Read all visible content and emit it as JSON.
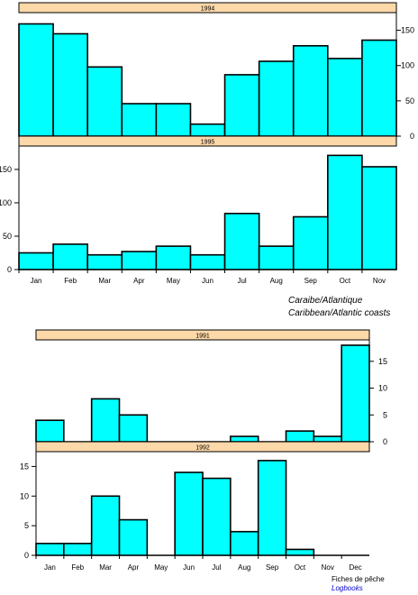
{
  "captions": {
    "region_fr": "Caraibe/Atlantique",
    "region_en": "Caribbean/Atlantic coasts",
    "source_fr": "Fiches de pêche",
    "source_en": "Logbooks"
  },
  "colors": {
    "bar": "#00ffff",
    "header": "#fdd8a8",
    "axis": "#000000",
    "source_en": "#0000cc"
  },
  "chart_data": [
    {
      "type": "bar",
      "title": "1994",
      "categories": [
        "Jan",
        "Feb",
        "Mar",
        "Apr",
        "May",
        "Jun",
        "Jul",
        "Aug",
        "Sep",
        "Oct",
        "Nov"
      ],
      "values": [
        159,
        145,
        98,
        46,
        46,
        17,
        87,
        106,
        128,
        110,
        136
      ],
      "ylim": [
        0,
        175
      ],
      "yticks": [
        0,
        50,
        100,
        150
      ],
      "ytick_side": "right",
      "xlabel": "",
      "ylabel": "",
      "grid": false
    },
    {
      "type": "bar",
      "title": "1995",
      "categories": [
        "Jan",
        "Feb",
        "Mar",
        "Apr",
        "May",
        "Jun",
        "Jul",
        "Aug",
        "Sep",
        "Oct",
        "Nov"
      ],
      "values": [
        25,
        38,
        22,
        27,
        35,
        22,
        84,
        35,
        79,
        171,
        154
      ],
      "ylim": [
        0,
        185
      ],
      "yticks": [
        0,
        50,
        100,
        150
      ],
      "ytick_side": "left",
      "xlabel": "",
      "ylabel": "",
      "grid": false
    },
    {
      "type": "bar",
      "title": "1991",
      "categories": [
        "Jan",
        "Feb",
        "Mar",
        "Apr",
        "May",
        "Jun",
        "Jul",
        "Aug",
        "Sep",
        "Oct",
        "Nov",
        "Dec"
      ],
      "values": [
        4,
        0,
        8,
        5,
        0,
        0,
        0,
        1,
        0,
        2,
        1,
        18
      ],
      "ylim": [
        0,
        19
      ],
      "yticks": [
        0,
        5,
        10,
        15
      ],
      "ytick_side": "right",
      "xlabel": "",
      "ylabel": "",
      "grid": false
    },
    {
      "type": "bar",
      "title": "1992",
      "categories": [
        "Jan",
        "Feb",
        "Mar",
        "Apr",
        "May",
        "Jun",
        "Jul",
        "Aug",
        "Sep",
        "Oct",
        "Nov",
        "Dec"
      ],
      "values": [
        2,
        2,
        10,
        6,
        0,
        14,
        13,
        4,
        16,
        1,
        0,
        0
      ],
      "ylim": [
        0,
        17.5
      ],
      "yticks": [
        0,
        5,
        10,
        15
      ],
      "ytick_side": "left",
      "xlabel": "",
      "ylabel": "",
      "grid": false
    }
  ]
}
